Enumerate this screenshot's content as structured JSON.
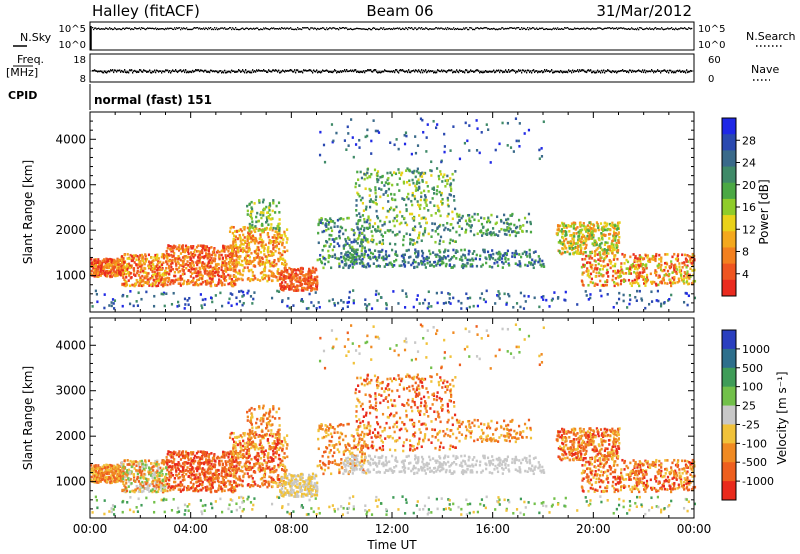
{
  "header": {
    "left": "Halley (fitACF)",
    "center": "Beam 06",
    "right": "31/Mar/2012"
  },
  "strip1": {
    "left_label": "N.Sky",
    "right_label": "N.Search",
    "left_ticks": [
      "10^5",
      "10^0"
    ],
    "right_ticks": [
      "10^5",
      "10^0"
    ]
  },
  "strip2": {
    "left_label_1": "Freq.",
    "left_label_2": "[MHz]",
    "right_label": "Nave",
    "left_ticks": [
      "18",
      "8"
    ],
    "right_ticks": [
      "60",
      "0"
    ]
  },
  "cpid": {
    "label": "CPID",
    "text": "normal (fast) 151"
  },
  "chart_data": [
    {
      "type": "heatmap",
      "title": "",
      "ylabel": "Slant Range [km]",
      "xlabel": "",
      "ylim": [
        200,
        4600
      ],
      "yticks": [
        "1000",
        "2000",
        "3000",
        "4000"
      ],
      "colorbar": {
        "label": "Power [dB]",
        "ticks": [
          "4",
          "8",
          "12",
          "16",
          "20",
          "24",
          "28"
        ],
        "colors": [
          "#1f28e6",
          "#2a49b0",
          "#3a6a8a",
          "#3f8a68",
          "#4ba844",
          "#8fcc2a",
          "#e9d21a",
          "#f4a81d",
          "#f3801f",
          "#ef5520",
          "#ea2b1f"
        ]
      }
    },
    {
      "type": "heatmap",
      "title": "",
      "ylabel": "Slant Range [km]",
      "xlabel": "Time UT",
      "ylim": [
        200,
        4600
      ],
      "yticks": [
        "1000",
        "2000",
        "3000",
        "4000"
      ],
      "xticks": [
        "00:00",
        "04:00",
        "08:00",
        "12:00",
        "16:00",
        "20:00",
        "00:00"
      ],
      "colorbar": {
        "label": "Velocity [m s⁻¹]",
        "ticks": [
          "1000",
          "500",
          "100",
          "25",
          "-25",
          "-100",
          "-500",
          "-1000"
        ],
        "colors": [
          "#2a3fbf",
          "#2e6f8c",
          "#3f9c58",
          "#72c04a",
          "#c8c8c8",
          "#f1c23a",
          "#f08a22",
          "#ee5f1e",
          "#e92a1c"
        ]
      }
    }
  ],
  "scatter_colors": {
    "power_low": "#2a49b0",
    "power_mid": "#4ba844",
    "power_high": "#ef5520",
    "vel_ground": "#c8c8c8",
    "vel_away": "#f08a22",
    "vel_toward": "#3f9c58"
  }
}
